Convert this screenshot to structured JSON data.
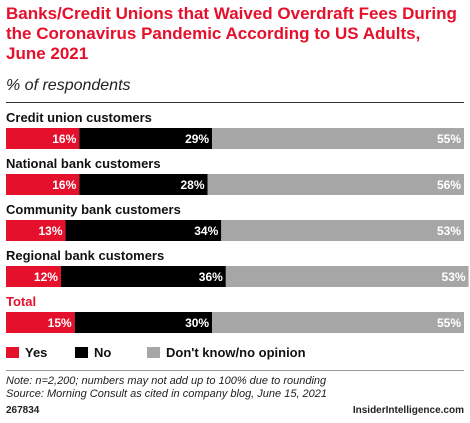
{
  "chart_data": {
    "type": "bar",
    "orientation": "horizontal",
    "stacked": true,
    "title": "Banks/Credit Unions that Waived Overdraft Fees During the Coronavirus Pandemic According to US Adults, June 2021",
    "subtitle": "% of respondents",
    "categories": [
      "Credit union customers",
      "National bank customers",
      "Community bank customers",
      "Regional bank customers",
      "Total"
    ],
    "series": [
      {
        "name": "Yes",
        "color": "#e5102b",
        "values": [
          16,
          16,
          13,
          12,
          15
        ]
      },
      {
        "name": "No",
        "color": "#000000",
        "values": [
          29,
          28,
          34,
          36,
          30
        ]
      },
      {
        "name": "Don't know/no opinion",
        "color": "#a6a6a6",
        "values": [
          55,
          56,
          53,
          53,
          55
        ]
      }
    ],
    "value_suffix": "%",
    "xlim": [
      0,
      100
    ],
    "grid": false,
    "legend_position": "bottom-left",
    "highlight_category_color": "#e5102b"
  },
  "footer": {
    "note_line1": "Note: n=2,200; numbers may not add up to 100% due to rounding",
    "note_line2": "Source: Morning Consult as cited in company blog, June 15, 2021",
    "chart_id": "267834",
    "brand": "InsiderIntelligence.com"
  }
}
